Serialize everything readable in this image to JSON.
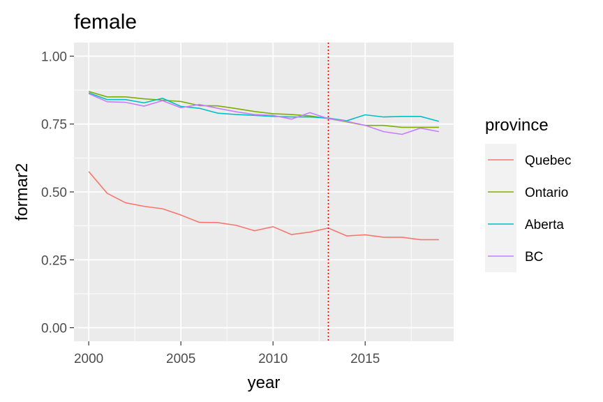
{
  "chart_data": {
    "type": "line",
    "title": "female",
    "xlabel": "year",
    "ylabel": "formar2",
    "xlim": [
      1999.2,
      2019.8
    ],
    "ylim": [
      -0.05,
      1.05
    ],
    "x_ticks": [
      2000,
      2005,
      2010,
      2015
    ],
    "x_tick_labels": [
      "2000",
      "2005",
      "2010",
      "2015"
    ],
    "y_ticks": [
      0,
      0.25,
      0.5,
      0.75,
      1
    ],
    "y_tick_labels": [
      "0.00",
      "0.25",
      "0.50",
      "0.75",
      "1.00"
    ],
    "grid": true,
    "panel_background": "#ebebeb",
    "grid_color": "#ffffff",
    "vline": {
      "x": 2013,
      "color": "#ff0000",
      "style": "dotted"
    },
    "legend": {
      "title": "province",
      "position": "right"
    },
    "x": [
      2000,
      2001,
      2002,
      2003,
      2004,
      2005,
      2006,
      2007,
      2008,
      2009,
      2010,
      2011,
      2012,
      2013,
      2014,
      2015,
      2016,
      2017,
      2018,
      2019
    ],
    "series": [
      {
        "name": "Quebec",
        "color": "#F8766D",
        "values": [
          0.575,
          0.495,
          0.46,
          0.447,
          0.438,
          0.415,
          0.388,
          0.387,
          0.377,
          0.357,
          0.372,
          0.343,
          0.352,
          0.367,
          0.338,
          0.342,
          0.333,
          0.333,
          0.324,
          0.324
        ]
      },
      {
        "name": "Ontario",
        "color": "#7CAE00",
        "values": [
          0.87,
          0.85,
          0.85,
          0.843,
          0.838,
          0.833,
          0.818,
          0.817,
          0.807,
          0.796,
          0.788,
          0.785,
          0.78,
          0.77,
          0.758,
          0.745,
          0.745,
          0.738,
          0.738,
          0.738
        ]
      },
      {
        "name": "Aberta",
        "color": "#00BFC4",
        "values": [
          0.865,
          0.84,
          0.84,
          0.828,
          0.845,
          0.815,
          0.808,
          0.79,
          0.785,
          0.782,
          0.778,
          0.776,
          0.776,
          0.772,
          0.762,
          0.784,
          0.776,
          0.778,
          0.778,
          0.76
        ]
      },
      {
        "name": "BC",
        "color": "#C77CFF",
        "values": [
          0.862,
          0.832,
          0.83,
          0.816,
          0.836,
          0.81,
          0.822,
          0.808,
          0.795,
          0.785,
          0.782,
          0.768,
          0.792,
          0.77,
          0.76,
          0.745,
          0.722,
          0.712,
          0.735,
          0.722
        ]
      }
    ]
  }
}
